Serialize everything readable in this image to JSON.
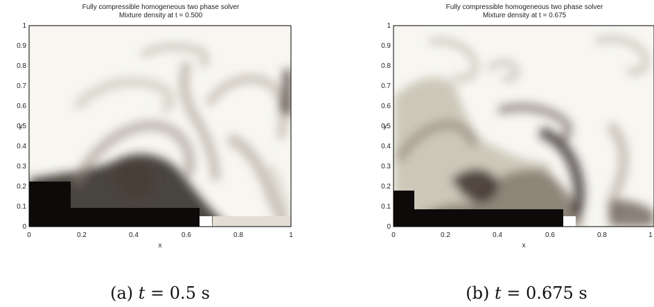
{
  "panels": [
    {
      "title_line1": "Fully compressible homogeneous two phase solver",
      "title_line2": "Mixture density at t = 0.500",
      "xlabel": "x",
      "ylabel": "y",
      "x_ticks": [
        "0",
        "0.2",
        "0.4",
        "0.6",
        "0.8",
        "1"
      ],
      "y_ticks": [
        "0",
        "0.1",
        "0.2",
        "0.3",
        "0.4",
        "0.5",
        "0.6",
        "0.7",
        "0.8",
        "0.9",
        "1"
      ],
      "caption_label": "(a)",
      "caption_var": "t",
      "caption_eq": " = 0.5 s"
    },
    {
      "title_line1": "Fully compressible homogeneous two phase solver",
      "title_line2": "Mixture density at t = 0.675",
      "xlabel": "x",
      "ylabel": "y",
      "x_ticks": [
        "0",
        "0.2",
        "0.4",
        "0.6",
        "0.8",
        "1"
      ],
      "y_ticks": [
        "0",
        "0.1",
        "0.2",
        "0.3",
        "0.4",
        "0.5",
        "0.6",
        "0.7",
        "0.8",
        "0.9",
        "1"
      ],
      "caption_label": "(b)",
      "caption_var": "t",
      "caption_eq": " = 0.675 s"
    }
  ],
  "colors": {
    "dense": "#0d0a09",
    "mid": "#7a6e62",
    "light": "#c8c3b4",
    "background": "#f7f6f1",
    "obstacle": "#ffffff"
  }
}
